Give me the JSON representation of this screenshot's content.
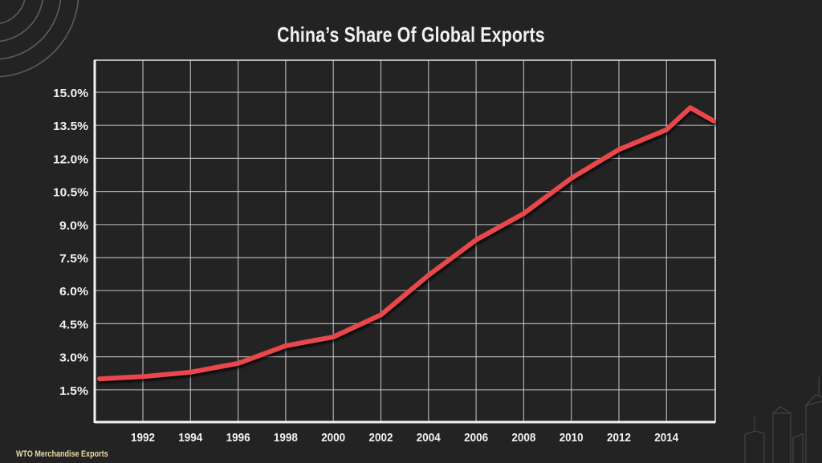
{
  "title": "China’s Share Of Global Exports",
  "source": "WTO Merchandise Exports",
  "colors": {
    "background": "#232323",
    "grid": "#c8c8c8",
    "axis": "#e6e6e6",
    "line": "#e8474c",
    "text": "#f1f1f1",
    "source_text": "#e8dca8"
  },
  "chart_data": {
    "type": "line",
    "title": "China’s Share Of Global Exports",
    "xlabel": "",
    "ylabel": "",
    "x_tick_labels": [
      "1992",
      "1994",
      "1996",
      "1998",
      "2000",
      "2002",
      "2004",
      "2006",
      "2008",
      "2010",
      "2012",
      "2014"
    ],
    "y_tick_labels": [
      "1.5%",
      "3.0%",
      "4.5%",
      "6.0%",
      "7.5%",
      "9.0%",
      "10.5%",
      "12.0%",
      "13.5%",
      "15.0%"
    ],
    "xlim": [
      1990.8,
      2016
    ],
    "ylim": [
      0,
      16.4
    ],
    "grid": true,
    "legend": null,
    "annotations": [
      "WTO Merchandise Exports"
    ],
    "series": [
      {
        "name": "China's share of global exports (%)",
        "x": [
          1991,
          1992,
          1994,
          1996,
          1998,
          2000,
          2002,
          2004,
          2006,
          2008,
          2010,
          2012,
          2014,
          2015,
          2016
        ],
        "values": [
          2.0,
          2.1,
          2.3,
          2.7,
          3.5,
          3.9,
          4.9,
          6.7,
          8.3,
          9.5,
          11.1,
          12.4,
          13.3,
          14.3,
          13.7
        ]
      }
    ]
  }
}
